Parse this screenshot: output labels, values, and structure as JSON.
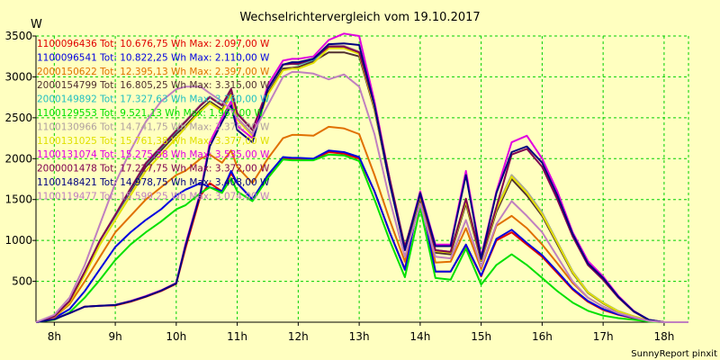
{
  "chart_data": {
    "type": "line",
    "title": "Wechselrichtervergleich vom 19.10.2017",
    "ylabel": "W",
    "footer": "SunnyReport pinxit",
    "ylim": [
      0,
      3500
    ],
    "xlim": [
      7.7,
      18.4
    ],
    "y_ticks": [
      500,
      1000,
      1500,
      2000,
      2500,
      3000,
      3500
    ],
    "x_ticks": [
      {
        "x": 8,
        "label": "8h"
      },
      {
        "x": 9,
        "label": "9h"
      },
      {
        "x": 10,
        "label": "10h"
      },
      {
        "x": 11,
        "label": "11h"
      },
      {
        "x": 12,
        "label": "12h"
      },
      {
        "x": 13,
        "label": "13h"
      },
      {
        "x": 14,
        "label": "14h"
      },
      {
        "x": 15,
        "label": "15h"
      },
      {
        "x": 16,
        "label": "16h"
      },
      {
        "x": 17,
        "label": "17h"
      },
      {
        "x": 18,
        "label": "18h"
      }
    ],
    "grid": true,
    "legend_position": "top-left",
    "x": [
      7.7,
      8.0,
      8.25,
      8.5,
      8.75,
      9.0,
      9.25,
      9.5,
      9.75,
      10.0,
      10.15,
      10.4,
      10.55,
      10.75,
      10.9,
      11.0,
      11.25,
      11.5,
      11.75,
      11.9,
      12.0,
      12.25,
      12.5,
      12.75,
      13.0,
      13.25,
      13.5,
      13.75,
      14.0,
      14.25,
      14.5,
      14.75,
      15.0,
      15.25,
      15.5,
      15.75,
      16.0,
      16.25,
      16.5,
      16.75,
      17.0,
      17.25,
      17.5,
      17.75,
      18.0,
      18.25,
      18.4
    ],
    "series": [
      {
        "name": "1100096436 Tot: 10.676,75 Wh Max: 2.097,00 W",
        "color": "#e00000",
        "values": [
          0,
          40,
          110,
          190,
          200,
          205,
          250,
          310,
          380,
          470,
          900,
          1550,
          1700,
          1600,
          1820,
          1700,
          1500,
          1780,
          2000,
          2000,
          2000,
          1990,
          2080,
          2060,
          2000,
          1600,
          1100,
          650,
          1550,
          620,
          620,
          940,
          560,
          1000,
          1100,
          950,
          800,
          600,
          400,
          250,
          150,
          90,
          50,
          10,
          0,
          0,
          0
        ]
      },
      {
        "name": "1100096541 Tot: 10.822,25 Wh Max: 2.110,00 W",
        "color": "#0000e0",
        "values": [
          0,
          50,
          160,
          380,
          650,
          920,
          1100,
          1250,
          1380,
          1550,
          1620,
          1700,
          1650,
          1600,
          1850,
          1700,
          1500,
          1800,
          2020,
          2010,
          2010,
          2000,
          2100,
          2080,
          2020,
          1600,
          1100,
          640,
          1560,
          620,
          620,
          950,
          570,
          1020,
          1130,
          970,
          820,
          620,
          410,
          260,
          160,
          95,
          55,
          12,
          0,
          0,
          0
        ]
      },
      {
        "name": "2000150622 Tot: 12.395,13 Wh Max: 2.397,00 W",
        "color": "#e07000",
        "values": [
          0,
          60,
          220,
          500,
          800,
          1100,
          1300,
          1500,
          1650,
          1800,
          1850,
          2000,
          2050,
          1950,
          2100,
          1900,
          1700,
          2000,
          2250,
          2290,
          2290,
          2280,
          2390,
          2370,
          2300,
          1800,
          1250,
          740,
          1600,
          730,
          740,
          1150,
          650,
          1180,
          1300,
          1150,
          950,
          720,
          480,
          300,
          190,
          110,
          60,
          15,
          0,
          0,
          0
        ]
      },
      {
        "name": "2000154799 Tot: 16.805,25 Wh Max: 3.315,00 W",
        "color": "#503030",
        "values": [
          0,
          70,
          250,
          600,
          1000,
          1300,
          1600,
          1900,
          2100,
          2300,
          2400,
          2600,
          2700,
          2600,
          2800,
          2500,
          2300,
          2800,
          3100,
          3110,
          3120,
          3190,
          3300,
          3300,
          3250,
          2600,
          1700,
          900,
          1500,
          850,
          830,
          1450,
          750,
          1350,
          1750,
          1550,
          1300,
          950,
          600,
          360,
          230,
          130,
          70,
          20,
          0,
          0,
          0
        ]
      },
      {
        "name": "2000149892 Tot: 17.327,63 Wh Max: 3.260,00 W",
        "color": "#20c0c0",
        "values": [
          0,
          70,
          260,
          620,
          1000,
          1300,
          1620,
          1930,
          2130,
          2330,
          2450,
          2650,
          2750,
          2650,
          2850,
          2550,
          2350,
          2850,
          3150,
          3160,
          3150,
          3210,
          3360,
          3360,
          3300,
          2650,
          1750,
          920,
          1550,
          880,
          860,
          1500,
          770,
          1400,
          1800,
          1600,
          1340,
          980,
          620,
          370,
          240,
          135,
          72,
          22,
          0,
          0,
          0
        ]
      },
      {
        "name": "1100129553 Tot: 9.521,13 Wh Max: 1.967,00 W",
        "color": "#00e000",
        "values": [
          0,
          30,
          120,
          300,
          520,
          760,
          950,
          1100,
          1230,
          1380,
          1430,
          1580,
          1650,
          1580,
          1760,
          1600,
          1480,
          1760,
          1990,
          1980,
          1980,
          1980,
          2050,
          2040,
          1970,
          1500,
          1000,
          550,
          1400,
          540,
          520,
          900,
          460,
          700,
          830,
          700,
          540,
          380,
          240,
          140,
          80,
          50,
          30,
          8,
          0,
          0,
          0
        ]
      },
      {
        "name": "1100130966 Tot: 14.741,75 Wh Max: 3.376,00 W",
        "color": "#b0a0a0",
        "values": [
          0,
          70,
          260,
          620,
          1000,
          1320,
          1640,
          1950,
          2150,
          2350,
          2460,
          2660,
          2760,
          2660,
          2860,
          2560,
          2360,
          2860,
          3150,
          3170,
          3160,
          3230,
          3380,
          3380,
          3310,
          2650,
          1750,
          920,
          1550,
          880,
          860,
          1500,
          770,
          1400,
          1800,
          1600,
          1340,
          980,
          620,
          370,
          240,
          135,
          72,
          22,
          0,
          0,
          0
        ]
      },
      {
        "name": "1100131025 Tot: 15.761,38 Wh Max: 3.377,00 W",
        "color": "#e0e000",
        "values": [
          0,
          65,
          240,
          580,
          950,
          1250,
          1550,
          1850,
          2050,
          2250,
          2380,
          2580,
          2680,
          2580,
          2780,
          2480,
          2280,
          2780,
          3080,
          3100,
          3100,
          3170,
          3350,
          3350,
          3280,
          2620,
          1720,
          910,
          1540,
          870,
          850,
          1480,
          760,
          1380,
          1780,
          1580,
          1320,
          970,
          610,
          365,
          235,
          132,
          71,
          21,
          0,
          0,
          0
        ]
      },
      {
        "name": "1100131074 Tot: 15.275,38 Wh Max: 3.535,00 W",
        "color": "#e000e0",
        "values": [
          0,
          40,
          110,
          190,
          200,
          210,
          260,
          320,
          390,
          480,
          950,
          1600,
          2200,
          2500,
          2700,
          2400,
          2250,
          2900,
          3200,
          3220,
          3220,
          3250,
          3450,
          3530,
          3500,
          2700,
          1750,
          900,
          1600,
          950,
          950,
          1850,
          800,
          1600,
          2200,
          2280,
          2000,
          1600,
          1100,
          750,
          560,
          320,
          140,
          30,
          0,
          0,
          0
        ]
      },
      {
        "name": "2000001478 Tot: 17.227,75 Wh Max: 3.372,00 W",
        "color": "#800050",
        "values": [
          0,
          70,
          260,
          620,
          1000,
          1310,
          1630,
          1940,
          2140,
          2340,
          2450,
          2650,
          2750,
          2650,
          2850,
          2550,
          2350,
          2850,
          3150,
          3160,
          3160,
          3220,
          3370,
          3370,
          3300,
          2650,
          1750,
          920,
          1560,
          880,
          860,
          1510,
          770,
          1410,
          2050,
          2120,
          1900,
          1500,
          1050,
          700,
          520,
          300,
          130,
          28,
          0,
          0,
          0
        ]
      },
      {
        "name": "1100148421 Tot: 14.978,75 Wh Max: 3.408,00 W",
        "color": "#000080",
        "values": [
          0,
          35,
          110,
          190,
          200,
          210,
          255,
          315,
          385,
          475,
          930,
          1580,
          2150,
          2450,
          2650,
          2350,
          2200,
          2850,
          3150,
          3180,
          3180,
          3220,
          3400,
          3410,
          3390,
          2650,
          1700,
          880,
          1580,
          930,
          930,
          1800,
          780,
          1580,
          2080,
          2150,
          1950,
          1550,
          1080,
          720,
          540,
          310,
          135,
          29,
          0,
          0,
          0
        ]
      },
      {
        "name": "1100119477 Tot: 15.599,25 Wh Max: 3.074,00 W",
        "color": "#c080c0",
        "values": [
          0,
          90,
          300,
          700,
          1200,
          1700,
          2100,
          2450,
          2700,
          2850,
          2880,
          2880,
          2800,
          2700,
          2600,
          2500,
          2300,
          2650,
          3000,
          3060,
          3060,
          3040,
          2970,
          3030,
          2880,
          2300,
          1500,
          800,
          1450,
          800,
          780,
          1250,
          680,
          1200,
          1480,
          1300,
          1100,
          800,
          500,
          300,
          190,
          110,
          60,
          15,
          0,
          0,
          0
        ]
      }
    ]
  }
}
